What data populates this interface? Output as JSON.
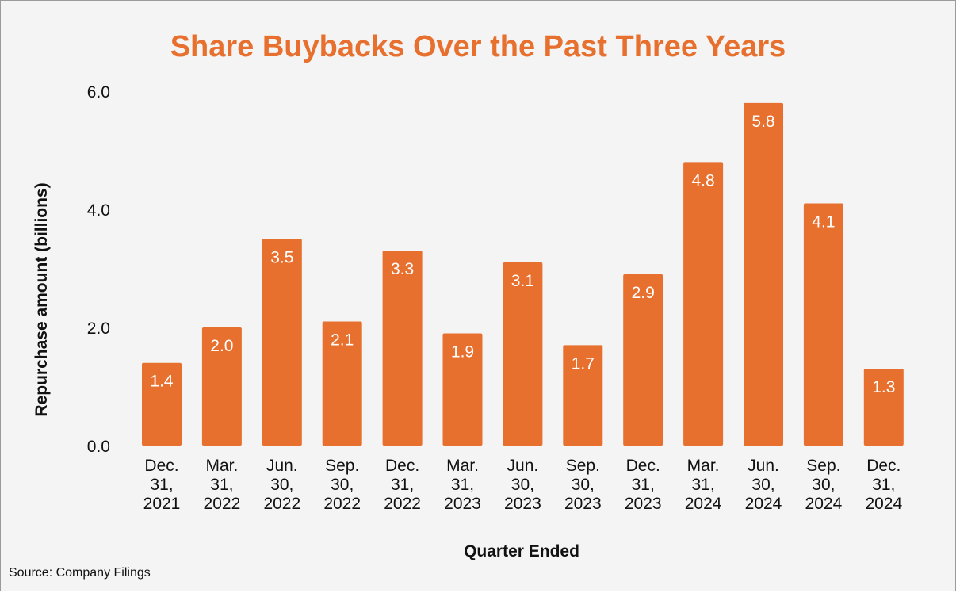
{
  "chart_data": {
    "type": "bar",
    "title": "Share Buybacks Over the Past Three Years",
    "xlabel": "Quarter Ended",
    "ylabel": "Repurchase amount (billions)",
    "ylim": [
      0,
      6
    ],
    "yticks": [
      "0.0",
      "2.0",
      "4.0",
      "6.0"
    ],
    "ytick_values": [
      0,
      2,
      4,
      6
    ],
    "categories": [
      [
        "Dec.",
        "31,",
        "2021"
      ],
      [
        "Mar.",
        "31,",
        "2022"
      ],
      [
        "Jun.",
        "30,",
        "2022"
      ],
      [
        "Sep.",
        "30,",
        "2022"
      ],
      [
        "Dec.",
        "31,",
        "2022"
      ],
      [
        "Mar.",
        "31,",
        "2023"
      ],
      [
        "Jun.",
        "30,",
        "2023"
      ],
      [
        "Sep.",
        "30,",
        "2023"
      ],
      [
        "Dec.",
        "31,",
        "2023"
      ],
      [
        "Mar.",
        "31,",
        "2024"
      ],
      [
        "Jun.",
        "30,",
        "2024"
      ],
      [
        "Sep.",
        "30,",
        "2024"
      ],
      [
        "Dec.",
        "31,",
        "2024"
      ]
    ],
    "values": [
      1.4,
      2.0,
      3.5,
      2.1,
      3.3,
      1.9,
      3.1,
      1.7,
      2.9,
      4.8,
      5.8,
      4.1,
      1.3
    ],
    "data_labels": [
      "1.4",
      "2.0",
      "3.5",
      "2.1",
      "3.3",
      "1.9",
      "3.1",
      "1.7",
      "2.9",
      "4.8",
      "5.8",
      "4.1",
      "1.3"
    ],
    "bar_color": "#e8702e",
    "grid": false,
    "legend": "none"
  },
  "source_note": "Source: Company Filings"
}
